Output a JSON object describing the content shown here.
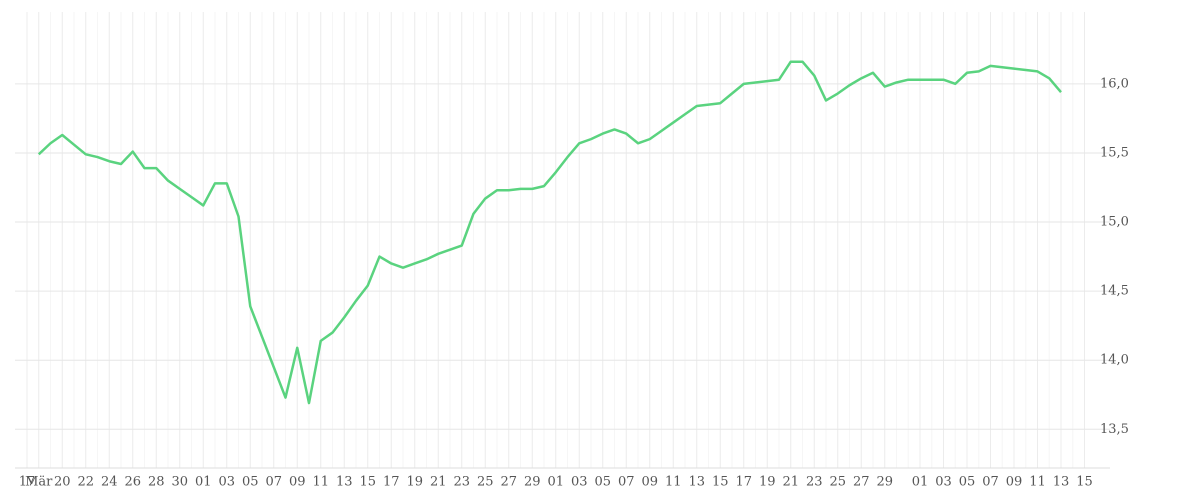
{
  "chart_data": {
    "type": "line",
    "categories": [
      "17",
      "Mär",
      null,
      "20",
      null,
      "22",
      null,
      "24",
      null,
      "26",
      null,
      "28",
      null,
      "30",
      null,
      "01",
      null,
      "03",
      null,
      "05",
      null,
      "07",
      null,
      "09",
      null,
      "11",
      null,
      "13",
      null,
      "15",
      null,
      "17",
      null,
      "19",
      null,
      "21",
      null,
      "23",
      null,
      "25",
      null,
      "27",
      null,
      "29",
      null,
      "01",
      null,
      "03",
      null,
      "05",
      null,
      "07",
      null,
      "09",
      null,
      "11",
      null,
      "13",
      null,
      "15",
      null,
      "17",
      null,
      "19",
      null,
      "21",
      null,
      "23",
      null,
      "25",
      null,
      "27",
      null,
      "29",
      null,
      null,
      "01",
      null,
      "03",
      null,
      "05",
      null,
      "07",
      null,
      "09",
      null,
      "11",
      null,
      "13",
      null,
      "15"
    ],
    "series": [
      {
        "color": "#5ad37f",
        "values": [
          null,
          15.49,
          15.57,
          15.63,
          15.56,
          15.49,
          15.47,
          15.44,
          15.42,
          15.51,
          15.39,
          15.39,
          15.3,
          15.24,
          15.18,
          15.12,
          15.28,
          15.28,
          15.04,
          14.39,
          14.17,
          13.95,
          13.73,
          14.09,
          13.69,
          14.14,
          14.2,
          14.31,
          14.43,
          14.54,
          14.75,
          14.7,
          14.67,
          14.7,
          14.73,
          14.77,
          14.8,
          14.83,
          15.06,
          15.17,
          15.23,
          15.23,
          15.24,
          15.24,
          15.26,
          15.36,
          15.47,
          15.57,
          15.6,
          15.64,
          15.67,
          15.64,
          15.57,
          15.6,
          15.66,
          15.72,
          15.78,
          15.84,
          15.85,
          15.86,
          15.93,
          16.0,
          16.01,
          16.02,
          16.03,
          16.16,
          16.16,
          16.06,
          15.88,
          15.93,
          15.99,
          16.04,
          16.08,
          15.98,
          16.01,
          16.03,
          16.03,
          16.03,
          16.03,
          16.0,
          16.08,
          16.09,
          16.13,
          16.12,
          16.11,
          16.1,
          16.09,
          16.04,
          15.94,
          null,
          null
        ]
      }
    ],
    "ylim": [
      13.22,
      16.52
    ],
    "yticks": [
      {
        "value": 13.5,
        "label": "13,5"
      },
      {
        "value": 14,
        "label": "14,0"
      },
      {
        "value": 14.5,
        "label": "14,5"
      },
      {
        "value": 15,
        "label": "15,0"
      },
      {
        "value": 15.5,
        "label": "15,5"
      },
      {
        "value": 16,
        "label": "16,0"
      }
    ],
    "grid": true
  }
}
